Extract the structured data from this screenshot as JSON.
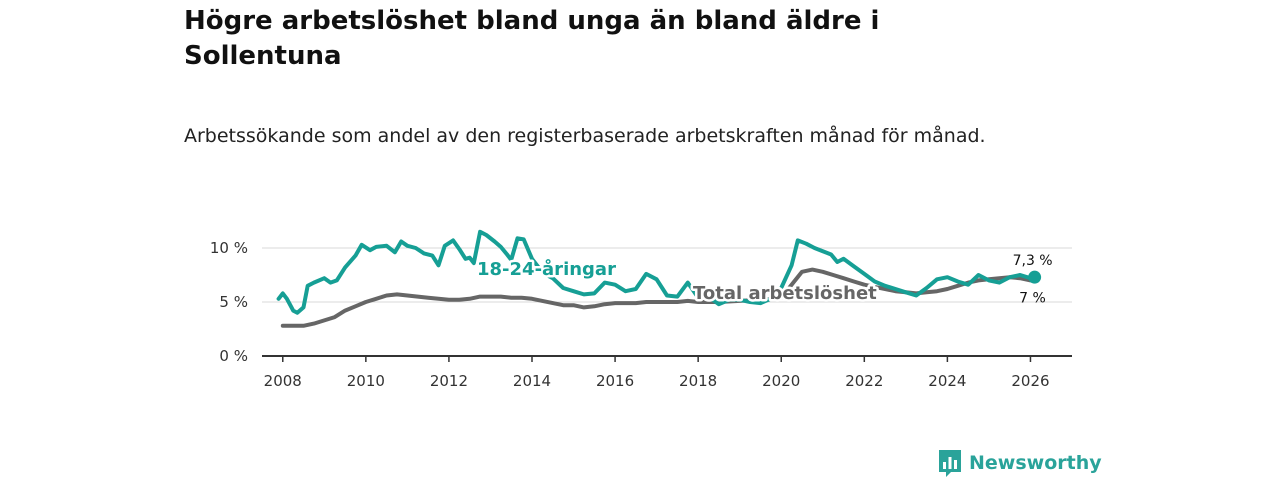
{
  "header": {
    "title": "Högre arbetslöshet bland unga än bland äldre i Sollentuna",
    "subtitle": "Arbetssökande som andel av den registerbaserade arbetskraften månad för månad."
  },
  "brand": {
    "name": "Newsworthy",
    "color": "#2aa39a"
  },
  "chart_data": {
    "type": "line",
    "title": "Högre arbetslöshet bland unga än bland äldre i Sollentuna",
    "subtitle": "Arbetssökande som andel av den registerbaserade arbetskraften månad för månad.",
    "xlabel": "",
    "ylabel": "",
    "xlim": [
      2007.5,
      2027.0
    ],
    "ylim": [
      0,
      10
    ],
    "y_ticks": [
      {
        "value": 0,
        "label": "0 %"
      },
      {
        "value": 5,
        "label": "5 %"
      },
      {
        "value": 10,
        "label": "10 %"
      }
    ],
    "x_ticks": [
      {
        "value": 2008,
        "label": "2008"
      },
      {
        "value": 2010,
        "label": "2010"
      },
      {
        "value": 2012,
        "label": "2012"
      },
      {
        "value": 2014,
        "label": "2014"
      },
      {
        "value": 2016,
        "label": "2016"
      },
      {
        "value": 2018,
        "label": "2018"
      },
      {
        "value": 2020,
        "label": "2020"
      },
      {
        "value": 2022,
        "label": "2022"
      },
      {
        "value": 2024,
        "label": "2024"
      },
      {
        "value": 2026,
        "label": "2026"
      }
    ],
    "grid": true,
    "series": [
      {
        "name": "Total arbetslöshet",
        "color": "#666666",
        "end_label": "7 %",
        "points": [
          [
            2008.0,
            2.8
          ],
          [
            2008.5,
            2.8
          ],
          [
            2008.75,
            3.0
          ],
          [
            2009.0,
            3.3
          ],
          [
            2009.25,
            3.6
          ],
          [
            2009.5,
            4.2
          ],
          [
            2009.75,
            4.6
          ],
          [
            2010.0,
            5.0
          ],
          [
            2010.25,
            5.3
          ],
          [
            2010.5,
            5.6
          ],
          [
            2010.75,
            5.7
          ],
          [
            2011.0,
            5.6
          ],
          [
            2011.25,
            5.5
          ],
          [
            2011.5,
            5.4
          ],
          [
            2011.75,
            5.3
          ],
          [
            2012.0,
            5.2
          ],
          [
            2012.25,
            5.2
          ],
          [
            2012.5,
            5.3
          ],
          [
            2012.75,
            5.5
          ],
          [
            2013.0,
            5.5
          ],
          [
            2013.25,
            5.5
          ],
          [
            2013.5,
            5.4
          ],
          [
            2013.75,
            5.4
          ],
          [
            2014.0,
            5.3
          ],
          [
            2014.25,
            5.1
          ],
          [
            2014.5,
            4.9
          ],
          [
            2014.75,
            4.7
          ],
          [
            2015.0,
            4.7
          ],
          [
            2015.25,
            4.5
          ],
          [
            2015.5,
            4.6
          ],
          [
            2015.75,
            4.8
          ],
          [
            2016.0,
            4.9
          ],
          [
            2016.25,
            4.9
          ],
          [
            2016.5,
            4.9
          ],
          [
            2016.75,
            5.0
          ],
          [
            2017.0,
            5.0
          ],
          [
            2017.25,
            5.0
          ],
          [
            2017.5,
            5.0
          ],
          [
            2017.75,
            5.1
          ],
          [
            2018.0,
            5.0
          ],
          [
            2018.5,
            5.0
          ],
          [
            2019.0,
            5.1
          ],
          [
            2019.5,
            5.2
          ],
          [
            2020.0,
            5.4
          ],
          [
            2020.25,
            6.6
          ],
          [
            2020.5,
            7.8
          ],
          [
            2020.75,
            8.0
          ],
          [
            2021.0,
            7.8
          ],
          [
            2021.25,
            7.5
          ],
          [
            2021.5,
            7.2
          ],
          [
            2021.75,
            6.9
          ],
          [
            2022.0,
            6.6
          ],
          [
            2022.25,
            6.4
          ],
          [
            2022.5,
            6.2
          ],
          [
            2022.75,
            6.0
          ],
          [
            2023.0,
            5.9
          ],
          [
            2023.25,
            5.8
          ],
          [
            2023.5,
            5.9
          ],
          [
            2023.75,
            6.0
          ],
          [
            2024.0,
            6.2
          ],
          [
            2024.25,
            6.5
          ],
          [
            2024.5,
            6.8
          ],
          [
            2024.75,
            7.0
          ],
          [
            2025.0,
            7.1
          ],
          [
            2025.25,
            7.2
          ],
          [
            2025.5,
            7.3
          ],
          [
            2025.75,
            7.2
          ],
          [
            2026.0,
            7.0
          ]
        ]
      },
      {
        "name": "18-24-åringar",
        "color": "#169f95",
        "end_label": "7,3 %",
        "points": [
          [
            2007.9,
            5.3
          ],
          [
            2008.0,
            5.8
          ],
          [
            2008.1,
            5.3
          ],
          [
            2008.25,
            4.2
          ],
          [
            2008.35,
            4.0
          ],
          [
            2008.5,
            4.5
          ],
          [
            2008.6,
            6.5
          ],
          [
            2008.75,
            6.8
          ],
          [
            2009.0,
            7.2
          ],
          [
            2009.15,
            6.8
          ],
          [
            2009.3,
            7.0
          ],
          [
            2009.5,
            8.2
          ],
          [
            2009.75,
            9.3
          ],
          [
            2009.9,
            10.3
          ],
          [
            2010.1,
            9.8
          ],
          [
            2010.25,
            10.1
          ],
          [
            2010.5,
            10.2
          ],
          [
            2010.7,
            9.6
          ],
          [
            2010.85,
            10.6
          ],
          [
            2011.0,
            10.2
          ],
          [
            2011.2,
            10.0
          ],
          [
            2011.4,
            9.5
          ],
          [
            2011.6,
            9.3
          ],
          [
            2011.75,
            8.4
          ],
          [
            2011.9,
            10.2
          ],
          [
            2012.1,
            10.7
          ],
          [
            2012.25,
            9.9
          ],
          [
            2012.4,
            9.0
          ],
          [
            2012.5,
            9.1
          ],
          [
            2012.6,
            8.6
          ],
          [
            2012.75,
            11.5
          ],
          [
            2012.9,
            11.2
          ],
          [
            2013.1,
            10.6
          ],
          [
            2013.25,
            10.1
          ],
          [
            2013.4,
            9.4
          ],
          [
            2013.5,
            8.9
          ],
          [
            2013.65,
            10.9
          ],
          [
            2013.8,
            10.8
          ],
          [
            2014.0,
            9.0
          ],
          [
            2014.2,
            8.0
          ],
          [
            2014.35,
            7.5
          ],
          [
            2014.5,
            7.2
          ],
          [
            2014.75,
            6.3
          ],
          [
            2015.0,
            6.0
          ],
          [
            2015.25,
            5.7
          ],
          [
            2015.5,
            5.8
          ],
          [
            2015.75,
            6.8
          ],
          [
            2016.0,
            6.6
          ],
          [
            2016.25,
            6.0
          ],
          [
            2016.5,
            6.2
          ],
          [
            2016.75,
            7.6
          ],
          [
            2017.0,
            7.1
          ],
          [
            2017.25,
            5.6
          ],
          [
            2017.5,
            5.5
          ],
          [
            2017.75,
            6.8
          ],
          [
            2018.0,
            5.4
          ],
          [
            2018.25,
            5.5
          ],
          [
            2018.5,
            4.8
          ],
          [
            2018.75,
            5.2
          ],
          [
            2019.0,
            5.2
          ],
          [
            2019.25,
            5.0
          ],
          [
            2019.5,
            4.9
          ],
          [
            2019.75,
            5.3
          ],
          [
            2020.0,
            6.3
          ],
          [
            2020.25,
            8.4
          ],
          [
            2020.4,
            10.7
          ],
          [
            2020.6,
            10.4
          ],
          [
            2020.8,
            10.0
          ],
          [
            2021.0,
            9.7
          ],
          [
            2021.2,
            9.4
          ],
          [
            2021.35,
            8.7
          ],
          [
            2021.5,
            9.0
          ],
          [
            2021.75,
            8.3
          ],
          [
            2022.0,
            7.6
          ],
          [
            2022.25,
            6.9
          ],
          [
            2022.5,
            6.5
          ],
          [
            2022.75,
            6.2
          ],
          [
            2023.0,
            5.9
          ],
          [
            2023.25,
            5.6
          ],
          [
            2023.5,
            6.3
          ],
          [
            2023.75,
            7.1
          ],
          [
            2024.0,
            7.3
          ],
          [
            2024.25,
            6.9
          ],
          [
            2024.5,
            6.6
          ],
          [
            2024.75,
            7.5
          ],
          [
            2025.0,
            7.0
          ],
          [
            2025.25,
            6.8
          ],
          [
            2025.5,
            7.3
          ],
          [
            2025.75,
            7.5
          ],
          [
            2026.0,
            7.2
          ],
          [
            2026.1,
            7.3
          ]
        ]
      }
    ]
  }
}
